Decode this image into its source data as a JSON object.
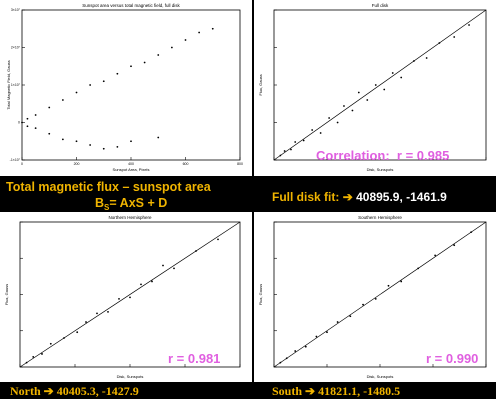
{
  "slide": {
    "captions": {
      "top_left_line1": "Total magnetic flux – sunspot area",
      "top_left_line2_prefix": "B",
      "top_left_line2_sub": "S",
      "top_left_line2_rest": "= AxS + D",
      "top_right_label": "Full disk fit:",
      "top_right_values": "40895.9, -1461.9",
      "bottom_left_label": "North",
      "bottom_left_values": "40405.3, -1427.9",
      "bottom_right_label": "South",
      "bottom_right_values": "41821.1, -1480.5",
      "arrow_glyph": "➔"
    },
    "colors": {
      "background": "#000000",
      "caption": "#f0b400",
      "correlation_text": "#e05fe0"
    }
  },
  "chart_data": [
    {
      "type": "scatter",
      "title": "Sunspot area versus total magnetic field, full disk",
      "xlabel": "Sunspot Area, Pixels",
      "ylabel": "Total Magnetic Field, Gauss",
      "x_tick_labels": [
        "0",
        "200",
        "400",
        "600",
        "800"
      ],
      "y_tick_labels": [
        "-1×10⁷",
        "0",
        "1×10⁷",
        "2×10⁷",
        "3×10⁷"
      ],
      "xlim": [
        0,
        800
      ],
      "ylim": [
        -10000000,
        30000000
      ],
      "points": [
        [
          0,
          0
        ],
        [
          20,
          1000000
        ],
        [
          20,
          -1000000
        ],
        [
          50,
          2000000
        ],
        [
          50,
          -1500000
        ],
        [
          100,
          4000000
        ],
        [
          100,
          -3000000
        ],
        [
          150,
          6000000
        ],
        [
          150,
          -4500000
        ],
        [
          200,
          8000000
        ],
        [
          200,
          -5000000
        ],
        [
          250,
          10000000
        ],
        [
          250,
          -6000000
        ],
        [
          300,
          11000000
        ],
        [
          300,
          -7000000
        ],
        [
          350,
          13000000
        ],
        [
          350,
          -6500000
        ],
        [
          400,
          15000000
        ],
        [
          400,
          -5000000
        ],
        [
          450,
          16000000
        ],
        [
          500,
          18000000
        ],
        [
          500,
          -4000000
        ],
        [
          550,
          20000000
        ],
        [
          600,
          22000000
        ],
        [
          650,
          24000000
        ],
        [
          700,
          25000000
        ]
      ]
    },
    {
      "type": "scatter",
      "title": "Full disk",
      "xlabel": "Disk, Sunspots",
      "ylabel": "Flux, Gauss",
      "annotation": "Correlation:",
      "r_value": "r = 0.985",
      "points": [
        [
          0.03,
          0.03
        ],
        [
          0.05,
          0.06
        ],
        [
          0.08,
          0.07
        ],
        [
          0.1,
          0.12
        ],
        [
          0.14,
          0.13
        ],
        [
          0.18,
          0.2
        ],
        [
          0.22,
          0.18
        ],
        [
          0.26,
          0.28
        ],
        [
          0.3,
          0.25
        ],
        [
          0.33,
          0.36
        ],
        [
          0.37,
          0.33
        ],
        [
          0.4,
          0.45
        ],
        [
          0.44,
          0.4
        ],
        [
          0.48,
          0.5
        ],
        [
          0.52,
          0.47
        ],
        [
          0.56,
          0.58
        ],
        [
          0.6,
          0.55
        ],
        [
          0.66,
          0.66
        ],
        [
          0.72,
          0.68
        ],
        [
          0.78,
          0.78
        ],
        [
          0.85,
          0.82
        ],
        [
          0.92,
          0.9
        ]
      ],
      "fit_line": [
        [
          0,
          0
        ],
        [
          1,
          1
        ]
      ]
    },
    {
      "type": "scatter",
      "title": "Northern Hemisphere",
      "xlabel": "Disk, Sunspots",
      "ylabel": "Flux, Gauss",
      "r_value": "r = 0.981",
      "points": [
        [
          0.03,
          0.03
        ],
        [
          0.06,
          0.07
        ],
        [
          0.1,
          0.09
        ],
        [
          0.14,
          0.16
        ],
        [
          0.2,
          0.2
        ],
        [
          0.26,
          0.24
        ],
        [
          0.3,
          0.31
        ],
        [
          0.35,
          0.37
        ],
        [
          0.4,
          0.38
        ],
        [
          0.45,
          0.47
        ],
        [
          0.5,
          0.48
        ],
        [
          0.55,
          0.57
        ],
        [
          0.6,
          0.59
        ],
        [
          0.65,
          0.7
        ],
        [
          0.7,
          0.68
        ],
        [
          0.8,
          0.8
        ],
        [
          0.9,
          0.88
        ]
      ],
      "fit_line": [
        [
          0,
          0
        ],
        [
          1,
          1
        ]
      ]
    },
    {
      "type": "scatter",
      "title": "Southern Hemisphere",
      "xlabel": "Disk, Sunspots",
      "ylabel": "Flux, Gauss",
      "r_value": "r = 0.990",
      "points": [
        [
          0.03,
          0.03
        ],
        [
          0.06,
          0.06
        ],
        [
          0.1,
          0.11
        ],
        [
          0.15,
          0.14
        ],
        [
          0.2,
          0.21
        ],
        [
          0.25,
          0.24
        ],
        [
          0.3,
          0.31
        ],
        [
          0.36,
          0.35
        ],
        [
          0.42,
          0.43
        ],
        [
          0.48,
          0.47
        ],
        [
          0.54,
          0.56
        ],
        [
          0.6,
          0.59
        ],
        [
          0.68,
          0.68
        ],
        [
          0.76,
          0.77
        ],
        [
          0.85,
          0.84
        ],
        [
          0.93,
          0.93
        ]
      ],
      "fit_line": [
        [
          0,
          0
        ],
        [
          1,
          1
        ]
      ]
    }
  ]
}
